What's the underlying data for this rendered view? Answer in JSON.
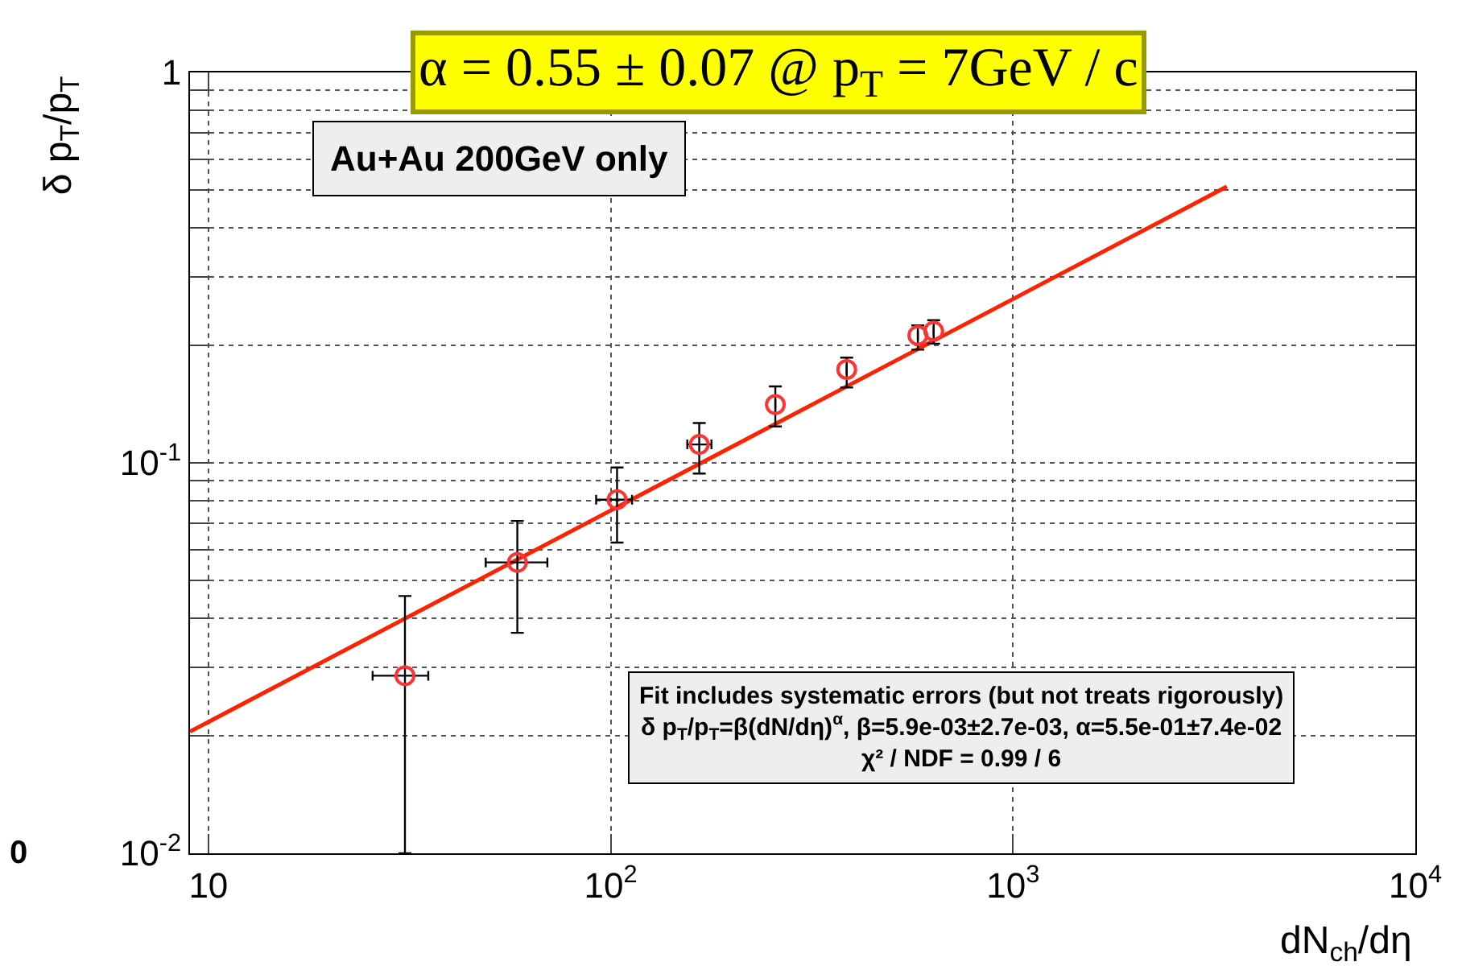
{
  "chart_data": {
    "type": "scatter",
    "title": "α = 0.55 ± 0.07 @ p$_{T}$ = 7GeV / c",
    "xlabel": "dN$_{ch}$/dη",
    "ylabel": "δ p$_{T}$/p$_{T}$",
    "log": "xy",
    "grid": true,
    "marker": "circle",
    "xlim": [
      9,
      10000
    ],
    "ylim": [
      0.01,
      1
    ],
    "xticks": [
      10,
      {
        "value": 100,
        "label": "10$^{2}$"
      },
      {
        "value": 1000,
        "label": "10$^{3}$"
      },
      {
        "value": 10000,
        "label": "10$^{4}$"
      }
    ],
    "yticks": [
      {
        "value": 0.01,
        "label": "10$^{-2}$"
      },
      {
        "value": 0.02,
        "label": null
      },
      {
        "value": 0.03,
        "label": null
      },
      {
        "value": 0.04,
        "label": null
      },
      {
        "value": 0.05,
        "label": null
      },
      {
        "value": 0.06,
        "label": null
      },
      {
        "value": 0.07,
        "label": null
      },
      {
        "value": 0.08,
        "label": null
      },
      {
        "value": 0.09,
        "label": null
      },
      {
        "value": 0.1,
        "label": "10$^{-1}$"
      },
      {
        "value": 0.2,
        "label": null
      },
      {
        "value": 0.3,
        "label": null
      },
      {
        "value": 0.4,
        "label": null
      },
      {
        "value": 0.5,
        "label": null
      },
      {
        "value": 0.6,
        "label": null
      },
      {
        "value": 0.7,
        "label": null
      },
      {
        "value": 0.8,
        "label": null
      },
      {
        "value": 0.9,
        "label": null
      },
      1
    ],
    "series": [
      {
        "color": "#ff3333",
        "x": [
          30.8,
          58.6,
          103.7,
          166,
          256.6,
          386,
          580,
          635
        ],
        "values": [
          0.0285,
          0.0556,
          0.0805,
          0.1115,
          0.141,
          0.1735,
          0.212,
          0.2175
        ],
        "errors": [
          [
            0.01,
            0.0456
          ],
          [
            0.0367,
            0.071
          ],
          [
            0.0625,
            0.0973
          ],
          [
            0.0939,
            0.1265
          ],
          [
            0.124,
            0.157
          ],
          [
            0.156,
            0.186
          ],
          [
            0.195,
            0.225
          ],
          [
            0.202,
            0.232
          ]
        ],
        "xerrors": [
          [
            25.6,
            35.2
          ],
          [
            48.9,
            69.6
          ],
          [
            92,
            113
          ],
          [
            155,
            178
          ],
          null,
          null,
          null,
          null
        ]
      },
      {
        "type": "line",
        "color": "#ff2200",
        "marker": "none",
        "x": [
          9,
          3400
        ],
        "values": [
          0.0205,
          0.51
        ]
      }
    ],
    "annotations": [
      "Au+Au 200GeV only",
      "Fit includes systematic errors (but not treats rigorously)",
      "δ p$_{T}$/p$_{T}$=β(dN/dη)$^{α}$, β=5.9e-03±2.7e-03, α=5.5e-01±7.4e-02",
      "χ² / NDF = 0.99 / 6",
      "0"
    ]
  }
}
